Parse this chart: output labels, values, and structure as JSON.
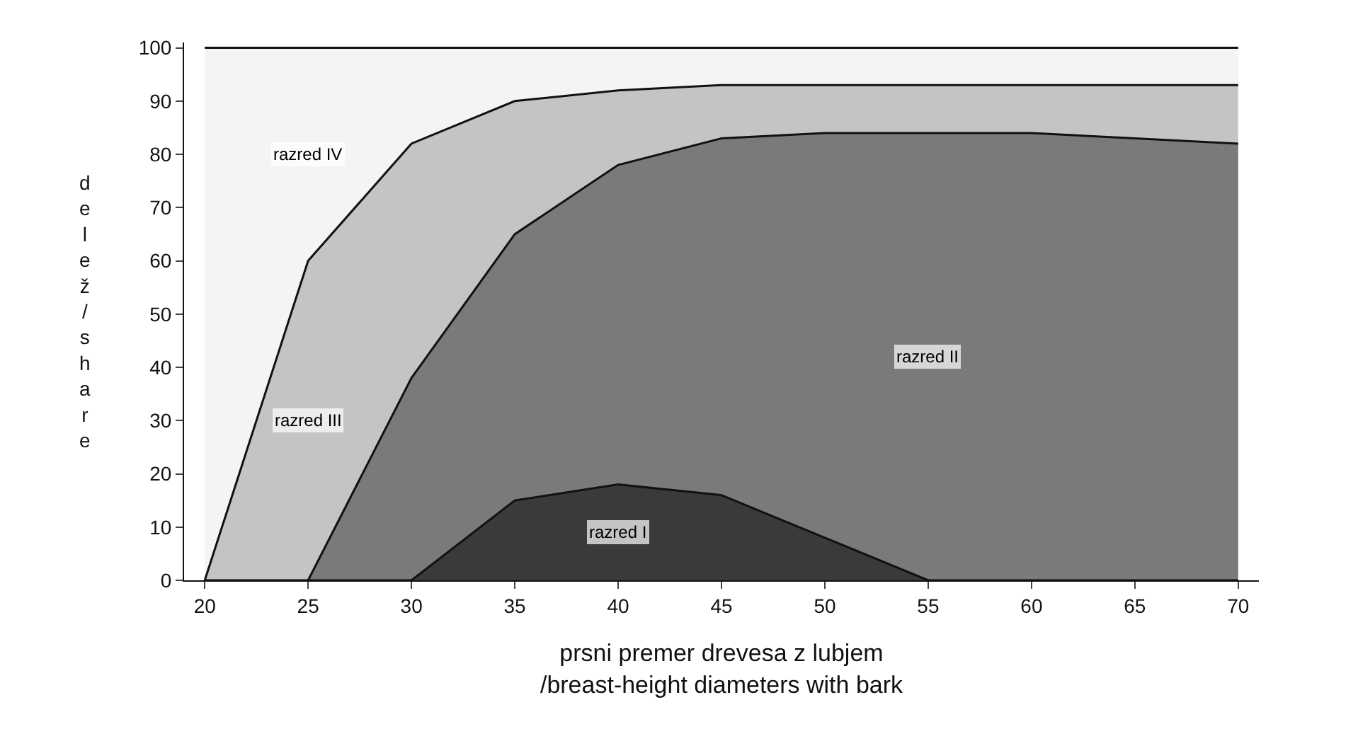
{
  "chart_data": {
    "type": "area",
    "stacked": true,
    "xlabel": "prsni premer drevesa z lubjem\n/breast-height diameters with bark",
    "ylabel": "delež / share",
    "x": [
      20,
      25,
      30,
      35,
      40,
      45,
      50,
      55,
      60,
      65,
      70
    ],
    "series": [
      {
        "name": "razred I",
        "color": "#3a3a3a",
        "values": [
          0,
          0,
          0,
          15,
          18,
          16,
          8,
          0,
          0,
          0,
          0
        ]
      },
      {
        "name": "razred II",
        "color": "#7a7a7a",
        "values": [
          0,
          0,
          38,
          50,
          60,
          67,
          76,
          84,
          84,
          83,
          82
        ]
      },
      {
        "name": "razred III",
        "color": "#c4c4c4",
        "values": [
          0,
          60,
          44,
          25,
          14,
          10,
          9,
          9,
          9,
          10,
          11
        ]
      },
      {
        "name": "razred IV",
        "color": "#f4f4f4",
        "values": [
          100,
          40,
          18,
          10,
          8,
          7,
          7,
          7,
          7,
          7,
          7
        ]
      }
    ],
    "xlim": [
      19,
      71
    ],
    "xticks": [
      20,
      25,
      30,
      35,
      40,
      45,
      50,
      55,
      60,
      65,
      70
    ],
    "ylim": [
      0,
      101
    ],
    "yticks": [
      0,
      10,
      20,
      30,
      40,
      50,
      60,
      70,
      80,
      90,
      100
    ],
    "grid": false,
    "legend": false
  }
}
